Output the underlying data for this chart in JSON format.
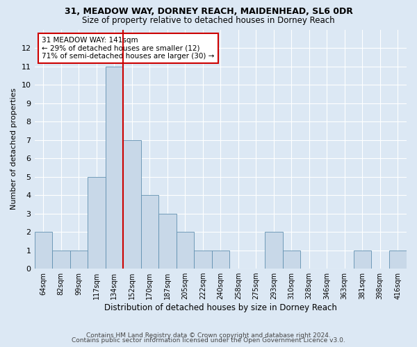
{
  "title": "31, MEADOW WAY, DORNEY REACH, MAIDENHEAD, SL6 0DR",
  "subtitle": "Size of property relative to detached houses in Dorney Reach",
  "xlabel": "Distribution of detached houses by size in Dorney Reach",
  "ylabel": "Number of detached properties",
  "categories": [
    "64sqm",
    "82sqm",
    "99sqm",
    "117sqm",
    "134sqm",
    "152sqm",
    "170sqm",
    "187sqm",
    "205sqm",
    "222sqm",
    "240sqm",
    "258sqm",
    "275sqm",
    "293sqm",
    "310sqm",
    "328sqm",
    "346sqm",
    "363sqm",
    "381sqm",
    "398sqm",
    "416sqm"
  ],
  "values": [
    2,
    1,
    1,
    5,
    11,
    7,
    4,
    3,
    2,
    1,
    1,
    0,
    0,
    2,
    1,
    0,
    0,
    0,
    1,
    0,
    1
  ],
  "bar_color": "#c8d8e8",
  "bar_edge_color": "#6090b0",
  "vline_index": 4,
  "vline_color": "#cc0000",
  "annotation_text": "31 MEADOW WAY: 141sqm\n← 29% of detached houses are smaller (12)\n71% of semi-detached houses are larger (30) →",
  "annotation_box_color": "#ffffff",
  "annotation_box_edge_color": "#cc0000",
  "ylim": [
    0,
    13
  ],
  "yticks": [
    0,
    1,
    2,
    3,
    4,
    5,
    6,
    7,
    8,
    9,
    10,
    11,
    12,
    13
  ],
  "background_color": "#dce8f4",
  "grid_color": "#ffffff",
  "fig_background_color": "#dce8f4",
  "footer1": "Contains HM Land Registry data © Crown copyright and database right 2024.",
  "footer2": "Contains public sector information licensed under the Open Government Licence v3.0.",
  "title_fontsize": 9,
  "subtitle_fontsize": 8.5
}
